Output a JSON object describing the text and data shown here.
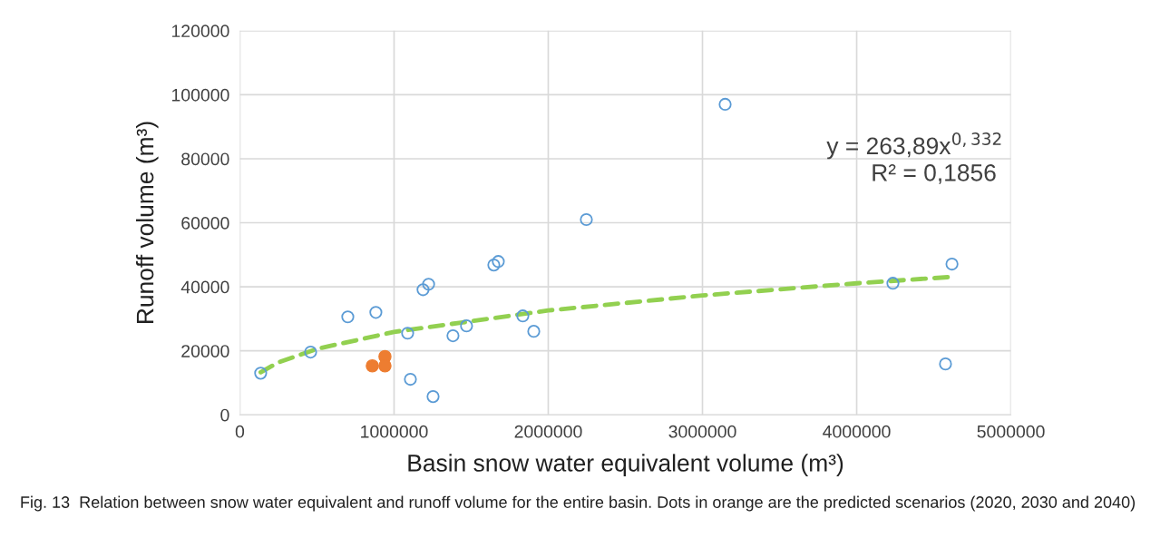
{
  "chart_data": {
    "type": "scatter",
    "xlabel": "Basin snow water equivalent volume (m³)",
    "ylabel": "Runoff volume (m³)",
    "xlim": [
      0,
      5000000
    ],
    "xticks": [
      0,
      1000000,
      2000000,
      3000000,
      4000000,
      5000000
    ],
    "ylim": [
      0,
      120000
    ],
    "yticks": [
      0,
      20000,
      40000,
      60000,
      80000,
      100000,
      120000
    ],
    "grid": true,
    "series": [
      {
        "marker": "circle",
        "color": "#5b9bd5",
        "x": [
          135000,
          459000,
          700000,
          882000,
          1088000,
          1106000,
          1188000,
          1224000,
          1253000,
          1382000,
          1470000,
          1647000,
          1676000,
          1835000,
          1906000,
          2247000,
          3147000,
          4235000,
          4576000,
          4618000
        ],
        "values": [
          13000,
          19600,
          30600,
          32000,
          25500,
          11100,
          39100,
          40800,
          5700,
          24700,
          27800,
          46800,
          47900,
          30900,
          26100,
          61000,
          97000,
          41100,
          15900,
          47100
        ]
      },
      {
        "marker": "circle",
        "color": "#ed7d31",
        "x": [
          859000,
          941000,
          941000
        ],
        "values": [
          15300,
          18200,
          15300
        ]
      },
      {
        "type": "line",
        "line_style": "dashed",
        "color": "#92d050",
        "x": [
          135000,
          250000,
          500000,
          1000000,
          2000000,
          3000000,
          4000000,
          4618000
        ],
        "values": [
          13300,
          16400,
          20600,
          25900,
          32600,
          37300,
          41100,
          43100
        ]
      }
    ],
    "annotations": [
      "y = 263,89x$^{0,332}$",
      "R² = 0,1856",
      "Fig. 13  Relation between snow water equivalent and runoff volume for the entire basin. Dots in orange are the predicted scenarios (2020, 2030 and 2040)"
    ]
  }
}
